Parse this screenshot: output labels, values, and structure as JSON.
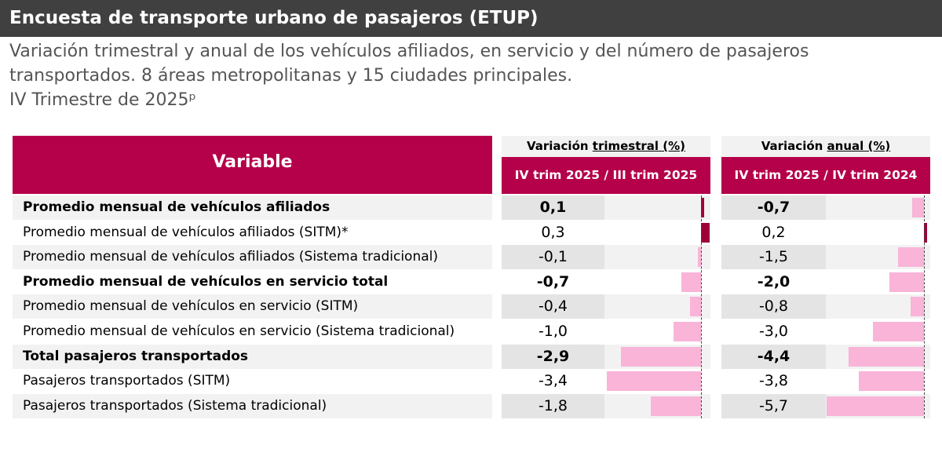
{
  "title": "Encuesta de transporte urbano de pasajeros (ETUP)",
  "subtitle_lines": [
    "Variación trimestral y anual de los vehículos afiliados, en servicio y del número de pasajeros",
    "transportados. 8 áreas metropolitanas y 15 ciudades principales.",
    "IV Trimestre de 2025ᵖ"
  ],
  "colors": {
    "header": "#b5004a",
    "positive_bar": "#9e0039",
    "negative_bar": "#f9b4d8",
    "title_bg": "#404040"
  },
  "chart_data": {
    "type": "table",
    "header_variable": "Variable",
    "groups": [
      {
        "prefix": "Variación ",
        "underlined": "trimestral (%)",
        "subheader": "IV trim 2025 / III trim 2025"
      },
      {
        "prefix": "Variación ",
        "underlined": "anual (%)",
        "subheader": "IV trim 2025 / IV trim 2024"
      }
    ],
    "rows": [
      {
        "label": "Promedio mensual de vehículos afiliados",
        "bold": true,
        "trim": "0,1",
        "anual": "-0,7",
        "trim_v": 0.1,
        "anual_v": -0.7
      },
      {
        "label": "Promedio mensual de vehículos afiliados (SITM)*",
        "bold": false,
        "trim": "0,3",
        "anual": "0,2",
        "trim_v": 0.3,
        "anual_v": 0.2
      },
      {
        "label": "Promedio mensual de vehículos afiliados (Sistema tradicional)",
        "bold": false,
        "trim": "-0,1",
        "anual": "-1,5",
        "trim_v": -0.1,
        "anual_v": -1.5
      },
      {
        "label": "Promedio mensual de vehículos en servicio total",
        "bold": true,
        "trim": "-0,7",
        "anual": "-2,0",
        "trim_v": -0.7,
        "anual_v": -2.0
      },
      {
        "label": "Promedio mensual de vehículos en servicio (SITM)",
        "bold": false,
        "trim": "-0,4",
        "anual": "-0,8",
        "trim_v": -0.4,
        "anual_v": -0.8
      },
      {
        "label": "Promedio mensual de vehículos en servicio (Sistema tradicional)",
        "bold": false,
        "trim": "-1,0",
        "anual": "-3,0",
        "trim_v": -1.0,
        "anual_v": -3.0
      },
      {
        "label": "Total pasajeros transportados",
        "bold": true,
        "trim": "-2,9",
        "anual": "-4,4",
        "trim_v": -2.9,
        "anual_v": -4.4
      },
      {
        "label": "Pasajeros transportados (SITM)",
        "bold": false,
        "trim": "-3,4",
        "anual": "-3,8",
        "trim_v": -3.4,
        "anual_v": -3.8
      },
      {
        "label": "Pasajeros transportados (Sistema tradicional)",
        "bold": false,
        "trim": "-1,8",
        "anual": "-5,7",
        "trim_v": -1.8,
        "anual_v": -5.7
      }
    ]
  }
}
